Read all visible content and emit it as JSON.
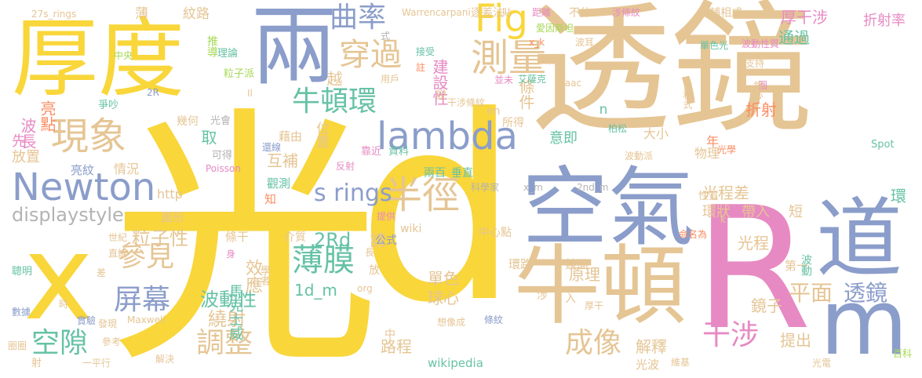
{
  "colors": {
    "background": "#ffffff",
    "yellow": "#f9d63a",
    "tan": "#e5c594",
    "blue": "#8b9dca",
    "teal": "#66c2a5",
    "pink": "#e78ac3",
    "orange": "#fc8d62",
    "green": "#a6d854",
    "gray": "#b3b3b3"
  },
  "words": [
    "光",
    "d",
    "透鏡",
    "R",
    "厚度",
    "兩",
    "x",
    "m",
    "空氣",
    "牛頓",
    "道",
    "lambda",
    "Newton",
    "現象",
    "半徑",
    "曲率",
    "Fig",
    "測量",
    "穿過",
    "牛頓環",
    "薄膜",
    "參見",
    "屏幕",
    "調整",
    "空隙",
    "成像",
    "干涉",
    "平面",
    "透鏡",
    "光程",
    "displaystyle",
    "s rings",
    "粒子性",
    "波動性",
    "繞射",
    "球心",
    "單色",
    "原理",
    "光程差",
    "厚干涉",
    "通過",
    "折射率",
    "2Rd",
    "1d_m",
    "路程",
    "解釋",
    "提出",
    "鏡子",
    "環狀",
    "帶入",
    "短",
    "環",
    "第一",
    "光波",
    "wikipedia",
    "wiki",
    "中心點",
    "環路",
    "鏡面",
    "波長",
    "亮點",
    "先",
    "放置",
    "情況",
    "亮紋",
    "http",
    "圖形",
    "取",
    "互補",
    "知",
    "觀測",
    "藉由",
    "靠近",
    "資料",
    "兩百",
    "垂直",
    "位置",
    "建設性",
    "越",
    "條件",
    "折射",
    "年",
    "大小",
    "物理",
    "意即",
    "n",
    "薄",
    "紋路",
    "推導",
    "理論",
    "粒子派",
    "中央",
    "爭吵",
    "幾何",
    "光會",
    "可得",
    "還線",
    "Poisson",
    "反射",
    "提供",
    "世紀",
    "直線",
    "身",
    "效應",
    "差",
    "聰明",
    "時",
    "數據",
    "圈圈",
    "實驗",
    "Maxwell",
    "發現",
    "參考",
    "射",
    "一平行",
    "解決",
    "學者",
    "馬克士威",
    "條干",
    "介質",
    "請",
    "放",
    "公式",
    "org",
    "中",
    "長",
    "科學家",
    "2nd_m",
    "x_m",
    "涉",
    "入",
    "想像成",
    "厚干",
    "柏松",
    "光學",
    "波動派",
    "圈",
    "鏡心",
    "支持",
    "方程式",
    "Spot",
    "k",
    "命名為",
    "波動",
    "維基",
    "百科",
    "光電",
    "條紋",
    "27s_rings",
    "Warrencarpani",
    "逐差法",
    "貼",
    "距離",
    "愛因斯坦",
    "不休",
    "涉條紋",
    "相輔相成",
    "單色光",
    "波動性質",
    "接受",
    "註",
    "用戶",
    "並未",
    "艾薩克",
    "干涉條紋",
    "Isaac",
    "en",
    "所得",
    "說",
    "式",
    "x_k",
    "波耳",
    "性質",
    "2R",
    "Il",
    "項"
  ]
}
